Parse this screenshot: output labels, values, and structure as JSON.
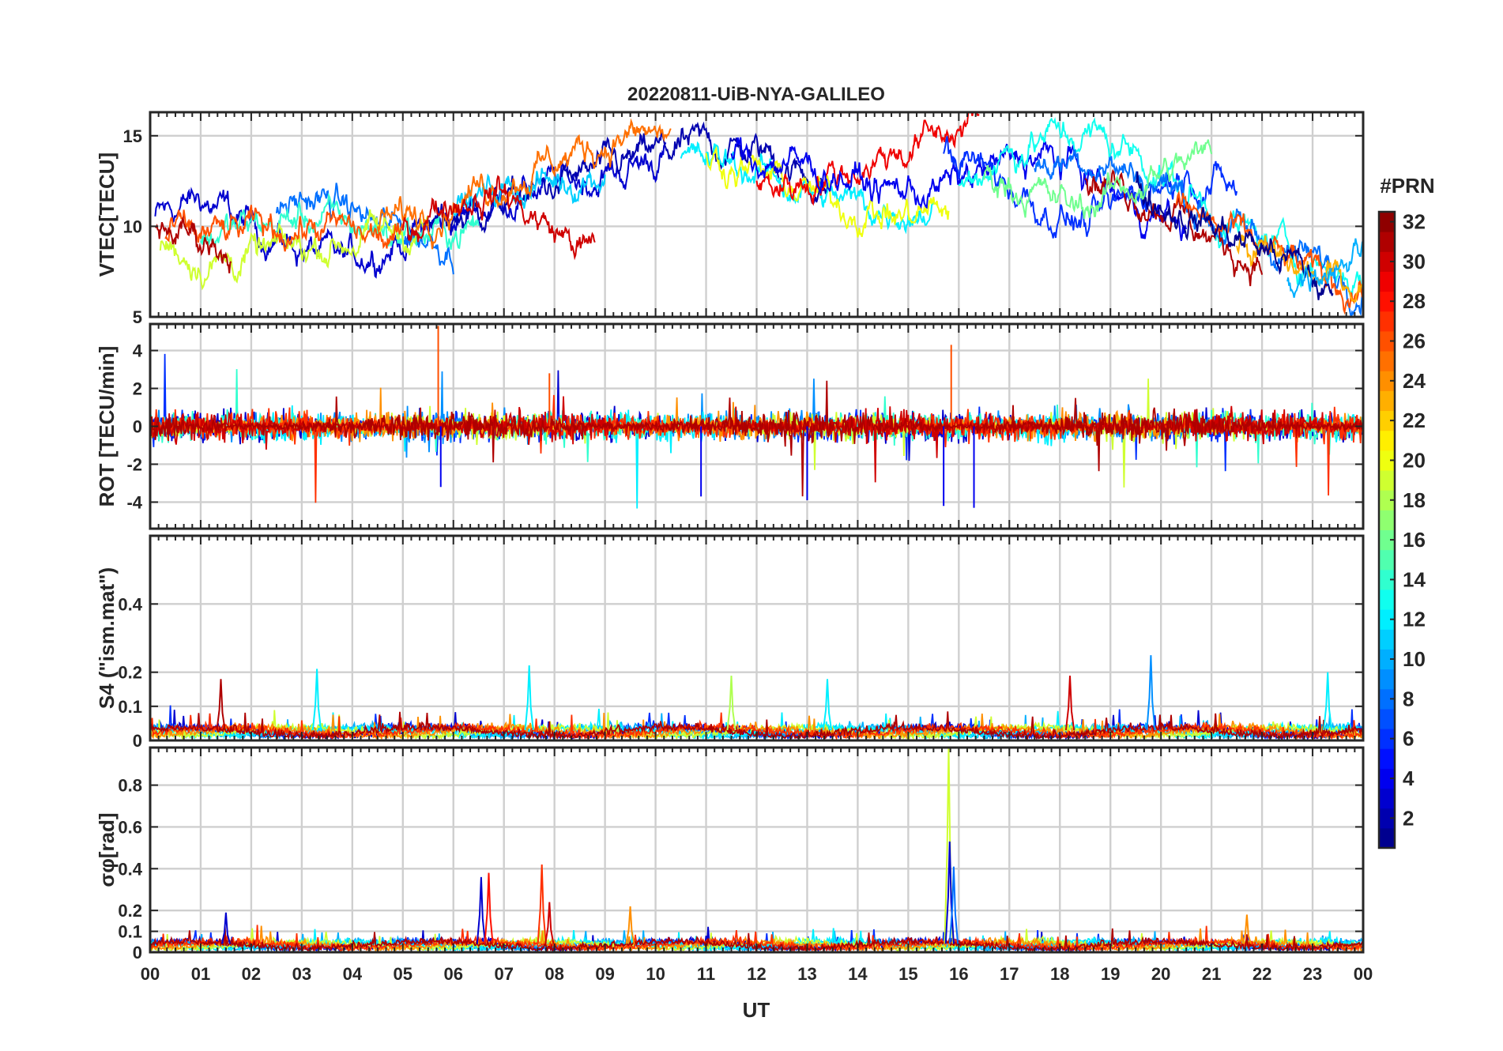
{
  "figure_title": "20220811-UiB-NYA-GALILEO",
  "chart_data": {
    "type": "line",
    "title": "20220811-UiB-NYA-GALILEO",
    "xlabel": "UT",
    "x_tick_labels": [
      "00",
      "01",
      "02",
      "03",
      "04",
      "05",
      "06",
      "07",
      "08",
      "09",
      "10",
      "11",
      "12",
      "13",
      "14",
      "15",
      "16",
      "17",
      "18",
      "19",
      "20",
      "21",
      "22",
      "23",
      "00"
    ],
    "xlim_hours": [
      0,
      24
    ],
    "grid": true,
    "colorbar": {
      "label": "#PRN",
      "range": [
        1,
        32
      ],
      "ticks": [
        "2",
        "4",
        "6",
        "8",
        "10",
        "12",
        "14",
        "16",
        "18",
        "20",
        "22",
        "24",
        "26",
        "28",
        "30",
        "32"
      ],
      "colormap": "jet",
      "levels": 32
    },
    "panels": [
      {
        "id": "vtec",
        "ylabel": "VTEC[TECU]",
        "ylim": [
          5,
          16.3
        ],
        "y_ticks": [
          5,
          10,
          15
        ],
        "y_tick_labels": [
          "5",
          "10",
          "15"
        ],
        "series": [
          {
            "prn": 3,
            "start": 0.1,
            "end": 10.2,
            "base": [
              10.5,
              11.5,
              10,
              9,
              8,
              9,
              10,
              11,
              12,
              12.5,
              13,
              14
            ]
          },
          {
            "prn": 2,
            "start": 5.5,
            "end": 13.4,
            "base": [
              10,
              11,
              12,
              13,
              14,
              14.5,
              14,
              12
            ]
          },
          {
            "prn": 8,
            "start": 2.5,
            "end": 6.0,
            "base": [
              11,
              11.5,
              11,
              10,
              9.5,
              9
            ]
          },
          {
            "prn": 11,
            "start": 6.0,
            "end": 9.0,
            "base": [
              11,
              12,
              12.5,
              13
            ]
          },
          {
            "prn": 14,
            "start": 1.0,
            "end": 6.5,
            "base": [
              9.5,
              10,
              10.5,
              10,
              9.5,
              10
            ]
          },
          {
            "prn": 19,
            "start": 0.2,
            "end": 5.5,
            "base": [
              9,
              8,
              8.5,
              9,
              9.5,
              10
            ]
          },
          {
            "prn": 25,
            "start": 4.5,
            "end": 10.3,
            "base": [
              10,
              11,
              12,
              13,
              14,
              15,
              15
            ]
          },
          {
            "prn": 26,
            "start": 0.3,
            "end": 5.0,
            "base": [
              9.5,
              9.5,
              10,
              9.8,
              9
            ]
          },
          {
            "prn": 30,
            "start": 5.0,
            "end": 8.8,
            "base": [
              10,
              11.5,
              12,
              10,
              8.5
            ]
          },
          {
            "prn": 31,
            "start": 0.1,
            "end": 1.6,
            "base": [
              10,
              9.5,
              9
            ]
          },
          {
            "prn": 12,
            "start": 10.5,
            "end": 15.5,
            "base": [
              13.5,
              13.5,
              12.5,
              11.5,
              11,
              11
            ]
          },
          {
            "prn": 20,
            "start": 11.0,
            "end": 15.8,
            "base": [
              14,
              13,
              12,
              11,
              10.5,
              11
            ]
          },
          {
            "prn": 29,
            "start": 12.0,
            "end": 16.4,
            "base": [
              12,
              12.5,
              13,
              14,
              15,
              16
            ]
          },
          {
            "prn": 4,
            "start": 11.5,
            "end": 20.5,
            "base": [
              14,
              13.5,
              13,
              12,
              12,
              13,
              14,
              13,
              11,
              10
            ]
          },
          {
            "prn": 6,
            "start": 15.7,
            "end": 21.5,
            "base": [
              14,
              13,
              11,
              10,
              12,
              13,
              12
            ]
          },
          {
            "prn": 13,
            "start": 16.0,
            "end": 24.0,
            "base": [
              12,
              14,
              15,
              15,
              14,
              12,
              10,
              9,
              8,
              7
            ]
          },
          {
            "prn": 8,
            "start": 17.5,
            "end": 24.0,
            "base": [
              13,
              14,
              13,
              12,
              10,
              9,
              8,
              7
            ]
          },
          {
            "prn": 31,
            "start": 18.5,
            "end": 22.0,
            "base": [
              13,
              12,
              11,
              9,
              8
            ]
          },
          {
            "prn": 26,
            "start": 20.3,
            "end": 24.0,
            "base": [
              11,
              10,
              9,
              8,
              7,
              6.5
            ]
          },
          {
            "prn": 23,
            "start": 21.5,
            "end": 24.0,
            "base": [
              9,
              8,
              7,
              7
            ]
          },
          {
            "prn": 1,
            "start": 19.5,
            "end": 23.4,
            "base": [
              12,
              11,
              10,
              9,
              8,
              6
            ]
          },
          {
            "prn": 16,
            "start": 16.5,
            "end": 21.0,
            "base": [
              13,
              12,
              11,
              12,
              13,
              14
            ]
          },
          {
            "prn": 10,
            "start": 22.5,
            "end": 24.0,
            "base": [
              7,
              8,
              9
            ]
          }
        ]
      },
      {
        "id": "rot",
        "ylabel": "ROT [TECU/min]",
        "ylim": [
          -5.4,
          5.4
        ],
        "y_ticks": [
          -4,
          -2,
          0,
          2,
          4
        ],
        "y_tick_labels": [
          "-4",
          "-2",
          "0",
          "2",
          "4"
        ],
        "typical_amplitude": 0.4,
        "notable_spikes": [
          {
            "x": 5.7,
            "value": 5.3
          },
          {
            "x": 5.75,
            "value": -3.2
          },
          {
            "x": 13.0,
            "value": -3.9
          },
          {
            "x": 15.85,
            "value": 4.3
          },
          {
            "x": 16.3,
            "value": -4.3
          },
          {
            "x": 15.7,
            "value": -4.2
          },
          {
            "x": 10.9,
            "value": -3.7
          },
          {
            "x": 7.9,
            "value": 2.8
          }
        ]
      },
      {
        "id": "s4",
        "ylabel": "S4 (\"ism.mat\")",
        "ylim": [
          0,
          0.6
        ],
        "y_ticks": [
          0,
          0.1,
          0.2,
          0.4
        ],
        "y_tick_labels": [
          "0",
          "0.1",
          "0.2",
          "0.4"
        ],
        "baseline": 0.03,
        "notable_peaks": [
          {
            "x": 1.4,
            "value": 0.18,
            "prn": 31
          },
          {
            "x": 3.3,
            "value": 0.21,
            "prn": 12
          },
          {
            "x": 7.5,
            "value": 0.22,
            "prn": 12
          },
          {
            "x": 11.5,
            "value": 0.19,
            "prn": 18
          },
          {
            "x": 13.4,
            "value": 0.18,
            "prn": 12
          },
          {
            "x": 18.2,
            "value": 0.19,
            "prn": 30
          },
          {
            "x": 19.8,
            "value": 0.25,
            "prn": 9
          },
          {
            "x": 23.3,
            "value": 0.2,
            "prn": 12
          }
        ]
      },
      {
        "id": "sigma_phi",
        "ylabel": "σφ[rad]",
        "ylim": [
          0,
          0.98
        ],
        "y_ticks": [
          0,
          0.1,
          0.2,
          0.4,
          0.6,
          0.8
        ],
        "y_tick_labels": [
          "0",
          "0.1",
          "0.2",
          "0.4",
          "0.6",
          "0.8"
        ],
        "baseline": 0.04,
        "notable_peaks": [
          {
            "x": 1.5,
            "value": 0.19,
            "prn": 3
          },
          {
            "x": 6.55,
            "value": 0.36,
            "prn": 3
          },
          {
            "x": 6.7,
            "value": 0.38,
            "prn": 28
          },
          {
            "x": 7.75,
            "value": 0.42,
            "prn": 27
          },
          {
            "x": 7.9,
            "value": 0.24,
            "prn": 30
          },
          {
            "x": 9.5,
            "value": 0.22,
            "prn": 24
          },
          {
            "x": 15.8,
            "value": 0.98,
            "prn": 19
          },
          {
            "x": 15.82,
            "value": 0.53,
            "prn": 3
          },
          {
            "x": 15.9,
            "value": 0.41,
            "prn": 8
          },
          {
            "x": 21.7,
            "value": 0.18,
            "prn": 24
          }
        ]
      }
    ]
  }
}
